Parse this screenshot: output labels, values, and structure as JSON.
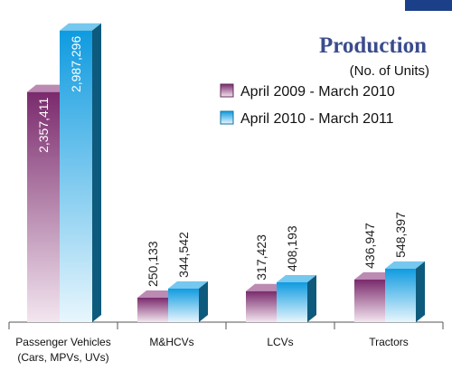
{
  "chart_data": {
    "type": "bar3d",
    "title": "Production",
    "subtitle": "(No. of Units)",
    "categories": [
      "Passenger Vehicles (Cars, MPVs, UVs)",
      "M&HCVs",
      "LCVs",
      "Tractors"
    ],
    "series": [
      {
        "name": "April 2009 - March 2010",
        "color": "#8e3d80",
        "values": [
          2357411,
          250133,
          317423,
          436947
        ],
        "value_labels": [
          "2,357,411",
          "250,133",
          "317,423",
          "436,947"
        ]
      },
      {
        "name": "April 2010 - March 2011",
        "color": "#1aa3e3",
        "values": [
          2987296,
          344542,
          408193,
          548397
        ],
        "value_labels": [
          "2,987,296",
          "344,542",
          "408,193",
          "548,397"
        ]
      }
    ],
    "ylim": [
      0,
      3300000
    ]
  }
}
